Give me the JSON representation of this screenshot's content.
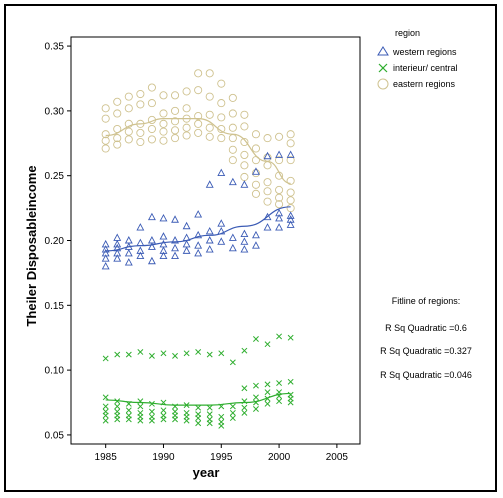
{
  "chart_data": {
    "type": "scatter",
    "xlabel": "year",
    "ylabel": "Theiler Disposableincome",
    "xlim": [
      1982,
      2007
    ],
    "ylim": [
      0.043,
      0.357
    ],
    "x_ticks": [
      "1985",
      "1990",
      "1995",
      "2000",
      "2005"
    ],
    "y_ticks": [
      "0.05",
      "0.10",
      "0.15",
      "0.20",
      "0.25",
      "0.30",
      "0.35"
    ],
    "grid": false,
    "legend": {
      "title": "region",
      "placement": "top-right",
      "entries": [
        "western regions",
        "interieur/ central",
        "eastern regions"
      ]
    },
    "fit_notes": {
      "title": "Fitline of regions:",
      "lines": [
        "R Sq Quadratic =0.6",
        "R Sq Quadratic =0.327",
        "R Sq Quadratic =0.046"
      ]
    },
    "colors": {
      "western regions": "#3b5bb5",
      "interieur/ central": "#2fae2f",
      "eastern regions": "#cfc28f"
    },
    "series": [
      {
        "name": "western regions",
        "marker": "triangle",
        "color": "#3b5bb5",
        "points": [
          [
            1985,
            0.18
          ],
          [
            1985,
            0.186
          ],
          [
            1985,
            0.19
          ],
          [
            1985,
            0.193
          ],
          [
            1985,
            0.197
          ],
          [
            1986,
            0.186
          ],
          [
            1986,
            0.19
          ],
          [
            1986,
            0.194
          ],
          [
            1986,
            0.197
          ],
          [
            1986,
            0.202
          ],
          [
            1987,
            0.183
          ],
          [
            1987,
            0.19
          ],
          [
            1987,
            0.195
          ],
          [
            1987,
            0.2
          ],
          [
            1988,
            0.188
          ],
          [
            1988,
            0.192
          ],
          [
            1988,
            0.198
          ],
          [
            1988,
            0.21
          ],
          [
            1989,
            0.184
          ],
          [
            1989,
            0.195
          ],
          [
            1989,
            0.2
          ],
          [
            1989,
            0.218
          ],
          [
            1990,
            0.188
          ],
          [
            1990,
            0.192
          ],
          [
            1990,
            0.197
          ],
          [
            1990,
            0.203
          ],
          [
            1990,
            0.217
          ],
          [
            1991,
            0.188
          ],
          [
            1991,
            0.194
          ],
          [
            1991,
            0.2
          ],
          [
            1991,
            0.216
          ],
          [
            1992,
            0.192
          ],
          [
            1992,
            0.197
          ],
          [
            1992,
            0.202
          ],
          [
            1992,
            0.211
          ],
          [
            1993,
            0.19
          ],
          [
            1993,
            0.196
          ],
          [
            1993,
            0.204
          ],
          [
            1993,
            0.22
          ],
          [
            1994,
            0.193
          ],
          [
            1994,
            0.2
          ],
          [
            1994,
            0.207
          ],
          [
            1994,
            0.243
          ],
          [
            1995,
            0.199
          ],
          [
            1995,
            0.207
          ],
          [
            1995,
            0.213
          ],
          [
            1995,
            0.252
          ],
          [
            1996,
            0.194
          ],
          [
            1996,
            0.202
          ],
          [
            1996,
            0.245
          ],
          [
            1997,
            0.193
          ],
          [
            1997,
            0.199
          ],
          [
            1997,
            0.205
          ],
          [
            1997,
            0.243
          ],
          [
            1998,
            0.196
          ],
          [
            1998,
            0.204
          ],
          [
            1998,
            0.253
          ],
          [
            1999,
            0.21
          ],
          [
            1999,
            0.218
          ],
          [
            1999,
            0.265
          ],
          [
            2000,
            0.21
          ],
          [
            2000,
            0.217
          ],
          [
            2000,
            0.221
          ],
          [
            2000,
            0.266
          ],
          [
            2001,
            0.212
          ],
          [
            2001,
            0.216
          ],
          [
            2001,
            0.219
          ],
          [
            2001,
            0.266
          ]
        ],
        "fit": [
          [
            1985,
            0.192
          ],
          [
            1988,
            0.196
          ],
          [
            1991,
            0.199
          ],
          [
            1994,
            0.204
          ],
          [
            1997,
            0.211
          ],
          [
            2001,
            0.226
          ]
        ]
      },
      {
        "name": "interieur/ central",
        "marker": "x",
        "color": "#2fae2f",
        "points": [
          [
            1985,
            0.061
          ],
          [
            1985,
            0.065
          ],
          [
            1985,
            0.068
          ],
          [
            1985,
            0.072
          ],
          [
            1985,
            0.079
          ],
          [
            1985,
            0.109
          ],
          [
            1986,
            0.062
          ],
          [
            1986,
            0.065
          ],
          [
            1986,
            0.068
          ],
          [
            1986,
            0.072
          ],
          [
            1986,
            0.076
          ],
          [
            1986,
            0.112
          ],
          [
            1987,
            0.062
          ],
          [
            1987,
            0.065
          ],
          [
            1987,
            0.069
          ],
          [
            1987,
            0.074
          ],
          [
            1987,
            0.112
          ],
          [
            1988,
            0.061
          ],
          [
            1988,
            0.064
          ],
          [
            1988,
            0.067
          ],
          [
            1988,
            0.072
          ],
          [
            1988,
            0.076
          ],
          [
            1988,
            0.114
          ],
          [
            1989,
            0.061
          ],
          [
            1989,
            0.064
          ],
          [
            1989,
            0.068
          ],
          [
            1989,
            0.074
          ],
          [
            1989,
            0.111
          ],
          [
            1990,
            0.062
          ],
          [
            1990,
            0.065
          ],
          [
            1990,
            0.069
          ],
          [
            1990,
            0.075
          ],
          [
            1990,
            0.113
          ],
          [
            1991,
            0.062
          ],
          [
            1991,
            0.065
          ],
          [
            1991,
            0.068
          ],
          [
            1991,
            0.072
          ],
          [
            1991,
            0.111
          ],
          [
            1992,
            0.061
          ],
          [
            1992,
            0.064
          ],
          [
            1992,
            0.067
          ],
          [
            1992,
            0.073
          ],
          [
            1992,
            0.113
          ],
          [
            1993,
            0.059
          ],
          [
            1993,
            0.063
          ],
          [
            1993,
            0.066
          ],
          [
            1993,
            0.071
          ],
          [
            1993,
            0.114
          ],
          [
            1994,
            0.059
          ],
          [
            1994,
            0.062
          ],
          [
            1994,
            0.066
          ],
          [
            1994,
            0.071
          ],
          [
            1994,
            0.112
          ],
          [
            1995,
            0.057
          ],
          [
            1995,
            0.06
          ],
          [
            1995,
            0.064
          ],
          [
            1995,
            0.072
          ],
          [
            1995,
            0.113
          ],
          [
            1996,
            0.063
          ],
          [
            1996,
            0.067
          ],
          [
            1996,
            0.072
          ],
          [
            1996,
            0.106
          ],
          [
            1997,
            0.067
          ],
          [
            1997,
            0.071
          ],
          [
            1997,
            0.076
          ],
          [
            1997,
            0.086
          ],
          [
            1997,
            0.115
          ],
          [
            1998,
            0.07
          ],
          [
            1998,
            0.075
          ],
          [
            1998,
            0.079
          ],
          [
            1998,
            0.088
          ],
          [
            1998,
            0.124
          ],
          [
            1999,
            0.074
          ],
          [
            1999,
            0.078
          ],
          [
            1999,
            0.083
          ],
          [
            1999,
            0.089
          ],
          [
            1999,
            0.12
          ],
          [
            2000,
            0.076
          ],
          [
            2000,
            0.08
          ],
          [
            2000,
            0.083
          ],
          [
            2000,
            0.09
          ],
          [
            2000,
            0.126
          ],
          [
            2001,
            0.075
          ],
          [
            2001,
            0.078
          ],
          [
            2001,
            0.081
          ],
          [
            2001,
            0.091
          ],
          [
            2001,
            0.125
          ]
        ],
        "fit": [
          [
            1985,
            0.077
          ],
          [
            1988,
            0.075
          ],
          [
            1991,
            0.073
          ],
          [
            1994,
            0.073
          ],
          [
            1997,
            0.075
          ],
          [
            2001,
            0.082
          ]
        ]
      },
      {
        "name": "eastern regions",
        "marker": "circle",
        "color": "#cfc28f",
        "points": [
          [
            1985,
            0.271
          ],
          [
            1985,
            0.277
          ],
          [
            1985,
            0.282
          ],
          [
            1985,
            0.294
          ],
          [
            1985,
            0.302
          ],
          [
            1986,
            0.274
          ],
          [
            1986,
            0.279
          ],
          [
            1986,
            0.286
          ],
          [
            1986,
            0.298
          ],
          [
            1986,
            0.307
          ],
          [
            1987,
            0.278
          ],
          [
            1987,
            0.284
          ],
          [
            1987,
            0.29
          ],
          [
            1987,
            0.302
          ],
          [
            1987,
            0.311
          ],
          [
            1988,
            0.276
          ],
          [
            1988,
            0.283
          ],
          [
            1988,
            0.29
          ],
          [
            1988,
            0.305
          ],
          [
            1988,
            0.313
          ],
          [
            1989,
            0.278
          ],
          [
            1989,
            0.286
          ],
          [
            1989,
            0.293
          ],
          [
            1989,
            0.306
          ],
          [
            1989,
            0.318
          ],
          [
            1990,
            0.277
          ],
          [
            1990,
            0.284
          ],
          [
            1990,
            0.29
          ],
          [
            1990,
            0.298
          ],
          [
            1990,
            0.312
          ],
          [
            1991,
            0.279
          ],
          [
            1991,
            0.285
          ],
          [
            1991,
            0.292
          ],
          [
            1991,
            0.3
          ],
          [
            1991,
            0.312
          ],
          [
            1992,
            0.281
          ],
          [
            1992,
            0.287
          ],
          [
            1992,
            0.294
          ],
          [
            1992,
            0.302
          ],
          [
            1992,
            0.315
          ],
          [
            1993,
            0.283
          ],
          [
            1993,
            0.29
          ],
          [
            1993,
            0.296
          ],
          [
            1993,
            0.316
          ],
          [
            1993,
            0.329
          ],
          [
            1994,
            0.28
          ],
          [
            1994,
            0.287
          ],
          [
            1994,
            0.297
          ],
          [
            1994,
            0.311
          ],
          [
            1994,
            0.329
          ],
          [
            1995,
            0.279
          ],
          [
            1995,
            0.286
          ],
          [
            1995,
            0.295
          ],
          [
            1995,
            0.306
          ],
          [
            1995,
            0.321
          ],
          [
            1996,
            0.262
          ],
          [
            1996,
            0.27
          ],
          [
            1996,
            0.279
          ],
          [
            1996,
            0.287
          ],
          [
            1996,
            0.298
          ],
          [
            1996,
            0.31
          ],
          [
            1997,
            0.249
          ],
          [
            1997,
            0.258
          ],
          [
            1997,
            0.266
          ],
          [
            1997,
            0.276
          ],
          [
            1997,
            0.288
          ],
          [
            1997,
            0.297
          ],
          [
            1998,
            0.236
          ],
          [
            1998,
            0.243
          ],
          [
            1998,
            0.252
          ],
          [
            1998,
            0.262
          ],
          [
            1998,
            0.271
          ],
          [
            1998,
            0.282
          ],
          [
            1999,
            0.23
          ],
          [
            1999,
            0.238
          ],
          [
            1999,
            0.245
          ],
          [
            1999,
            0.258
          ],
          [
            1999,
            0.264
          ],
          [
            1999,
            0.279
          ],
          [
            2000,
            0.228
          ],
          [
            2000,
            0.233
          ],
          [
            2000,
            0.239
          ],
          [
            2000,
            0.25
          ],
          [
            2000,
            0.262
          ],
          [
            2000,
            0.28
          ],
          [
            2001,
            0.225
          ],
          [
            2001,
            0.231
          ],
          [
            2001,
            0.237
          ],
          [
            2001,
            0.246
          ],
          [
            2001,
            0.262
          ],
          [
            2001,
            0.275
          ],
          [
            2001,
            0.282
          ]
        ],
        "fit": [
          [
            1985,
            0.281
          ],
          [
            1988,
            0.29
          ],
          [
            1990,
            0.294
          ],
          [
            1993,
            0.294
          ],
          [
            1996,
            0.282
          ],
          [
            1999,
            0.261
          ],
          [
            2001,
            0.244
          ]
        ]
      }
    ]
  }
}
